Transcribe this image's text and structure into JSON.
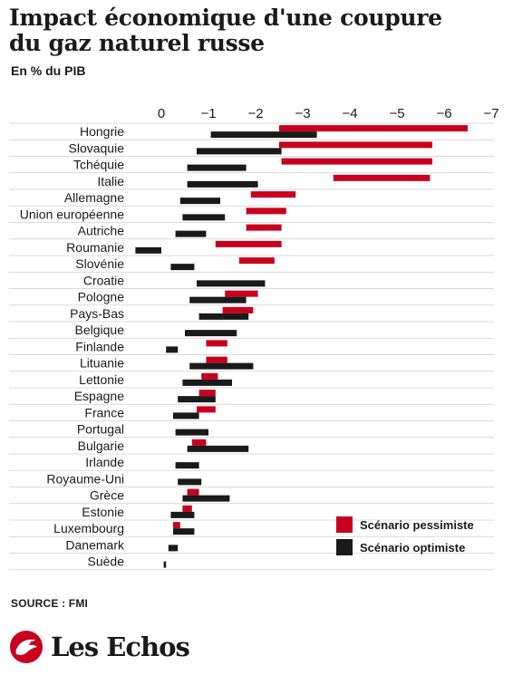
{
  "header": {
    "title_line1": "Impact économique d'une coupure",
    "title_line2": "du gaz naturel russe",
    "subtitle": "En % du PIB"
  },
  "footer": {
    "source": "SOURCE : FMI",
    "brand": "Les Echos"
  },
  "colors": {
    "pessimiste": "#c8001e",
    "optimiste": "#1a1a1a",
    "gridline": "#cfcfcf",
    "text": "#1a1a1a"
  },
  "chart_data": {
    "type": "bar",
    "orientation": "horizontal",
    "bar_style": "floating range",
    "x_axis": {
      "ticks": [
        0,
        -1,
        -2,
        -3,
        -4,
        -5,
        -6,
        -7
      ],
      "tick_labels": [
        "0",
        "−1",
        "−2",
        "−3",
        "−4",
        "−5",
        "−6",
        "−7"
      ],
      "range": [
        0.6,
        -7.1
      ],
      "direction": "decreasing left to right",
      "position": "top"
    },
    "grid": "horizontal lines between rows",
    "legend": {
      "position": "bottom-right",
      "entries": [
        "Scénario pessimiste",
        "Scénario optimiste"
      ]
    },
    "categories": [
      "Hongrie",
      "Slovaquie",
      "Tchéquie",
      "Italie",
      "Allemagne",
      "Union européenne",
      "Autriche",
      "Roumanie",
      "Slovénie",
      "Croatie",
      "Pologne",
      "Pays-Bas",
      "Belgique",
      "Finlande",
      "Lituanie",
      "Lettonie",
      "Espagne",
      "France",
      "Portugal",
      "Bulgarie",
      "Irlande",
      "Royaume-Uni",
      "Grèce",
      "Estonie",
      "Luxembourg",
      "Danemark",
      "Suède"
    ],
    "series": [
      {
        "name": "Scénario pessimiste",
        "color": "#c8001e",
        "ranges": [
          [
            -2.5,
            -6.5
          ],
          [
            -2.5,
            -5.75
          ],
          [
            -2.55,
            -5.75
          ],
          [
            -3.65,
            -5.7
          ],
          [
            -1.9,
            -2.85
          ],
          [
            -1.8,
            -2.65
          ],
          [
            -1.8,
            -2.55
          ],
          [
            -1.15,
            -2.55
          ],
          [
            -1.65,
            -2.4
          ],
          null,
          [
            -1.35,
            -2.05
          ],
          [
            -1.3,
            -1.95
          ],
          null,
          [
            -0.95,
            -1.4
          ],
          [
            -0.95,
            -1.4
          ],
          [
            -0.85,
            -1.2
          ],
          [
            -0.8,
            -1.15
          ],
          [
            -0.75,
            -1.15
          ],
          null,
          [
            -0.65,
            -0.95
          ],
          null,
          null,
          [
            -0.55,
            -0.8
          ],
          [
            -0.45,
            -0.65
          ],
          [
            -0.25,
            -0.4
          ],
          null,
          null
        ]
      },
      {
        "name": "Scénario optimiste",
        "color": "#1a1a1a",
        "ranges": [
          [
            -1.05,
            -3.3
          ],
          [
            -0.75,
            -2.55
          ],
          [
            -0.55,
            -1.8
          ],
          [
            -0.55,
            -2.05
          ],
          [
            -0.4,
            -1.25
          ],
          [
            -0.45,
            -1.35
          ],
          [
            -0.3,
            -0.95
          ],
          [
            0.55,
            0.0
          ],
          [
            -0.2,
            -0.7
          ],
          [
            -0.75,
            -2.2
          ],
          [
            -0.6,
            -1.8
          ],
          [
            -0.8,
            -1.85
          ],
          [
            -0.5,
            -1.6
          ],
          [
            -0.1,
            -0.35
          ],
          [
            -0.6,
            -1.95
          ],
          [
            -0.45,
            -1.5
          ],
          [
            -0.35,
            -1.15
          ],
          [
            -0.25,
            -0.8
          ],
          [
            -0.3,
            -1.0
          ],
          [
            -0.55,
            -1.85
          ],
          [
            -0.3,
            -0.8
          ],
          [
            -0.35,
            -0.85
          ],
          [
            -0.45,
            -1.45
          ],
          [
            -0.2,
            -0.7
          ],
          [
            -0.25,
            -0.7
          ],
          [
            -0.15,
            -0.35
          ],
          [
            -0.05,
            -0.1
          ]
        ]
      }
    ]
  }
}
